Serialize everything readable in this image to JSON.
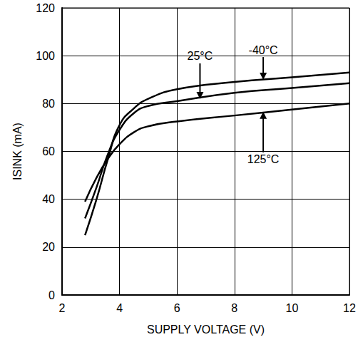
{
  "chart_data": {
    "type": "line",
    "x_label": "SUPPLY VOLTAGE (V)",
    "y_label": "ISINK (mA)",
    "xlim": [
      2,
      12
    ],
    "xticks": [
      2,
      4,
      6,
      8,
      10,
      12
    ],
    "ylim": [
      0,
      120
    ],
    "yticks": [
      0,
      20,
      40,
      60,
      80,
      100,
      120
    ],
    "grid": true,
    "x": [
      2.8,
      3.2,
      3.6,
      4,
      4.5,
      5,
      6,
      8,
      10,
      12
    ],
    "series": [
      {
        "name": "-40°C",
        "color": "#000000",
        "values": [
          25,
          40,
          57,
          71,
          78,
          82,
          86,
          89,
          91,
          93
        ]
      },
      {
        "name": "25°C",
        "color": "#000000",
        "values": [
          32,
          45,
          59,
          69,
          76,
          79,
          81,
          84.5,
          86.5,
          88.5
        ]
      },
      {
        "name": "125°C",
        "color": "#000000",
        "values": [
          39,
          49,
          57,
          63,
          68,
          70.5,
          72.5,
          75,
          77.5,
          80
        ]
      }
    ],
    "annotations": [
      {
        "text": "-40°C",
        "x": 9,
        "y": 90.5
      },
      {
        "text": "25°C",
        "x": 6.8,
        "y": 82.5
      },
      {
        "text": "125°C",
        "x": 9,
        "y": 76
      }
    ]
  }
}
